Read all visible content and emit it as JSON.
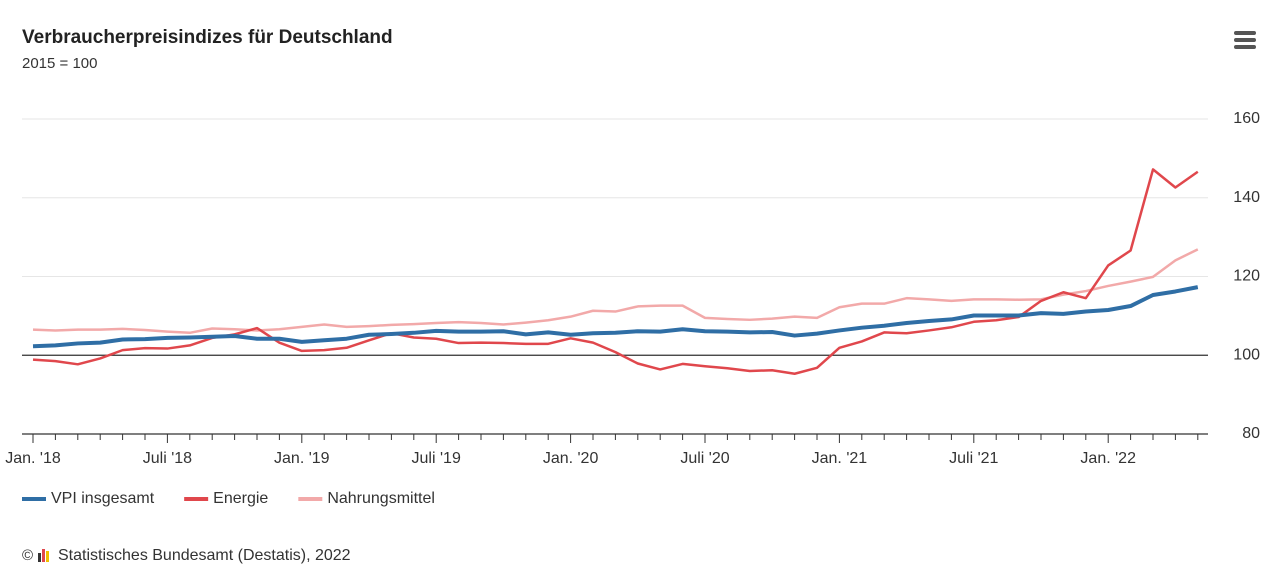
{
  "chart_data": {
    "type": "line",
    "title": "Verbraucherpreisindizes für Deutschland",
    "subtitle": "2015 = 100",
    "source": "Statistisches Bundesamt (Destatis), 2022",
    "categories": [
      "Jan. '18",
      null,
      null,
      null,
      null,
      null,
      "Juli '18",
      null,
      null,
      null,
      null,
      null,
      "Jan. '19",
      null,
      null,
      null,
      null,
      null,
      "Juli '19",
      null,
      null,
      null,
      null,
      null,
      "Jan. '20",
      null,
      null,
      null,
      null,
      null,
      "Juli '20",
      null,
      null,
      null,
      null,
      null,
      "Jan. '21",
      null,
      null,
      null,
      null,
      null,
      "Juli '21",
      null,
      null,
      null,
      null,
      null,
      "Jan. '22",
      null,
      null,
      null,
      null
    ],
    "series": [
      {
        "name": "VPI insgesamt",
        "color": "#2f6ea5",
        "values": [
          102.3,
          102.5,
          103.0,
          103.2,
          104.0,
          104.1,
          104.4,
          104.5,
          104.7,
          104.9,
          104.2,
          104.2,
          103.4,
          103.8,
          104.2,
          105.2,
          105.4,
          105.7,
          106.2,
          106.0,
          106.0,
          106.1,
          105.3,
          105.8,
          105.2,
          105.6,
          105.7,
          106.1,
          106.0,
          106.6,
          106.1,
          106.0,
          105.8,
          105.9,
          105.0,
          105.5,
          106.3,
          107.0,
          107.5,
          108.2,
          108.7,
          109.1,
          110.1,
          110.1,
          110.1,
          110.7,
          110.5,
          111.1,
          111.5,
          112.5,
          115.3,
          116.2,
          117.3
        ]
      },
      {
        "name": "Energie",
        "color": "#e0474c",
        "values": [
          98.9,
          98.5,
          97.7,
          99.2,
          101.3,
          101.8,
          101.7,
          102.5,
          104.4,
          105.3,
          106.9,
          103.2,
          101.1,
          101.3,
          101.9,
          103.8,
          105.6,
          104.5,
          104.2,
          103.1,
          103.2,
          103.1,
          102.9,
          102.9,
          104.3,
          103.2,
          100.8,
          97.9,
          96.4,
          97.8,
          97.2,
          96.7,
          96.0,
          96.2,
          95.3,
          96.8,
          101.9,
          103.5,
          105.8,
          105.6,
          106.3,
          107.1,
          108.5,
          108.9,
          109.7,
          113.8,
          116.0,
          114.5,
          122.8,
          126.6,
          147.2,
          142.6,
          146.6
        ]
      },
      {
        "name": "Nahrungsmittel",
        "color": "#f2a9a9",
        "values": [
          106.5,
          106.3,
          106.5,
          106.5,
          106.7,
          106.4,
          106.0,
          105.7,
          106.8,
          106.6,
          106.3,
          106.6,
          107.2,
          107.8,
          107.2,
          107.4,
          107.7,
          107.9,
          108.2,
          108.4,
          108.2,
          107.8,
          108.3,
          108.9,
          109.8,
          111.3,
          111.1,
          112.4,
          112.6,
          112.6,
          109.5,
          109.2,
          109.0,
          109.3,
          109.8,
          109.5,
          112.2,
          113.1,
          113.1,
          114.5,
          114.2,
          113.8,
          114.2,
          114.2,
          114.1,
          114.2,
          115.4,
          116.3,
          117.6,
          118.7,
          119.9,
          124.1,
          126.9
        ]
      }
    ],
    "ylim": [
      80,
      160
    ],
    "yticks": [
      80,
      100,
      120,
      140,
      160
    ],
    "grid": true,
    "reference_line": 100
  }
}
